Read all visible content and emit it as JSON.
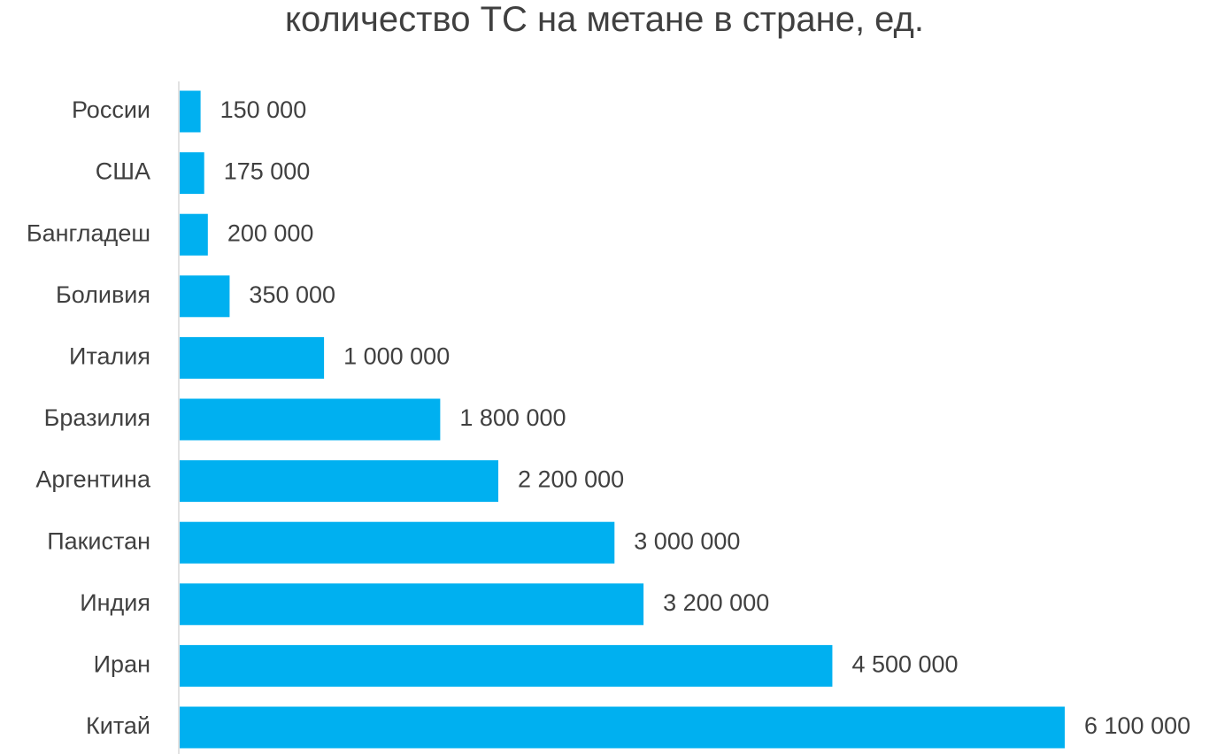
{
  "chart_data": {
    "type": "bar",
    "orientation": "horizontal",
    "title": "количество ТС на метане в стране, ед.",
    "categories": [
      "России",
      "США",
      "Бангладеш",
      "Боливия",
      "Италия",
      "Бразилия",
      "Аргентина",
      "Пакистан",
      "Индия",
      "Иран",
      "Китай"
    ],
    "values": [
      150000,
      175000,
      200000,
      350000,
      1000000,
      1800000,
      2200000,
      3000000,
      3200000,
      4500000,
      6100000
    ],
    "value_labels": [
      "150 000",
      "175 000",
      "200 000",
      "350 000",
      "1 000 000",
      "1 800 000",
      "2 200 000",
      "3 000 000",
      "3 200 000",
      "4 500 000",
      "6 100 000"
    ],
    "xlabel": "",
    "ylabel": "",
    "xlim": [
      0,
      6100000
    ],
    "grid": false,
    "legend": "none",
    "bar_color": "#00B0F0",
    "axis_color": "#D9D9D9"
  }
}
